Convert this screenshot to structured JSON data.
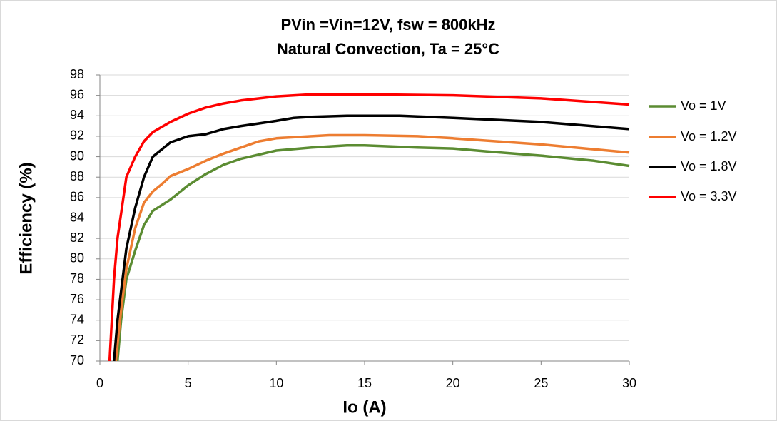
{
  "chart_data": {
    "type": "line",
    "title": "PVin =Vin=12V, fsw = 800kHz",
    "subtitle": "Natural Convection, Ta = 25°C",
    "x_label": "Io (A)",
    "y_label": "Efficiency (%)",
    "xlim": [
      0,
      30
    ],
    "xticks": [
      0,
      5,
      10,
      15,
      20,
      25,
      30
    ],
    "ylim": [
      70,
      98
    ],
    "yticks": [
      70,
      72,
      74,
      76,
      78,
      80,
      82,
      84,
      86,
      88,
      90,
      92,
      94,
      96,
      98
    ],
    "grid": true,
    "legend": "right",
    "series": [
      {
        "name": "Vo = 1V",
        "color": "#5b8c32",
        "x": [
          1,
          1.2,
          1.5,
          2,
          2.5,
          3,
          4,
          5,
          6,
          7,
          8,
          10,
          12,
          14,
          15,
          18,
          20,
          22,
          25,
          28,
          30
        ],
        "values": [
          70,
          74,
          78,
          80.8,
          83.3,
          84.7,
          85.8,
          87.2,
          88.3,
          89.2,
          89.8,
          90.6,
          90.9,
          91.1,
          91.1,
          90.9,
          90.8,
          90.5,
          90.1,
          89.6,
          89.1
        ]
      },
      {
        "name": "Vo = 1.2V",
        "color": "#ed7d31",
        "x": [
          0.9,
          1.2,
          1.5,
          2,
          2.5,
          3,
          3.5,
          4,
          5,
          6,
          7,
          8,
          9,
          10,
          12,
          13,
          15,
          18,
          20,
          25,
          30
        ],
        "values": [
          70,
          75,
          79,
          83,
          85.5,
          86.6,
          87.3,
          88.1,
          88.8,
          89.6,
          90.3,
          90.9,
          91.5,
          91.8,
          92,
          92.1,
          92.1,
          92,
          91.8,
          91.2,
          90.4
        ]
      },
      {
        "name": "Vo = 1.8V",
        "color": "#000000",
        "x": [
          0.8,
          1,
          1.5,
          2,
          2.5,
          3,
          3.5,
          4,
          5,
          6,
          7,
          8,
          10,
          11,
          12,
          14,
          17,
          20,
          25,
          30
        ],
        "values": [
          70,
          74,
          81,
          85,
          88,
          90,
          90.7,
          91.4,
          92,
          92.2,
          92.7,
          93,
          93.5,
          93.8,
          93.9,
          94,
          94,
          93.8,
          93.4,
          92.7
        ]
      },
      {
        "name": "Vo = 3.3V",
        "color": "#ff0000",
        "x": [
          0.55,
          0.8,
          1,
          1.5,
          2,
          2.5,
          3,
          4,
          5,
          6,
          7,
          8,
          10,
          12,
          15,
          20,
          25,
          30
        ],
        "values": [
          70,
          78,
          82,
          88,
          90,
          91.5,
          92.4,
          93.4,
          94.2,
          94.8,
          95.2,
          95.5,
          95.9,
          96.1,
          96.1,
          96,
          95.7,
          95.1
        ]
      }
    ]
  }
}
